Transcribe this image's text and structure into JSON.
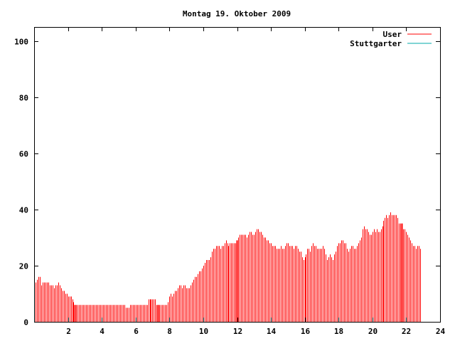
{
  "chart_data": {
    "type": "bar",
    "title": "Montag 19. Oktober 2009",
    "xlabel": "",
    "ylabel": "",
    "xlim": [
      0,
      24
    ],
    "ylim": [
      0,
      105
    ],
    "xticks": [
      2,
      4,
      6,
      8,
      10,
      12,
      14,
      16,
      18,
      20,
      22,
      24
    ],
    "yticks": [
      0,
      20,
      40,
      60,
      80,
      100
    ],
    "grid": false,
    "legend_position": "top-right",
    "bar_step_hours": 0.0833,
    "series": [
      {
        "name": "User",
        "color": "#ff0000",
        "values": [
          15,
          14,
          15,
          16,
          16,
          13,
          14,
          14,
          14,
          14,
          14,
          13,
          13,
          13,
          12,
          13,
          13,
          14,
          13,
          12,
          11,
          11,
          10,
          10,
          9,
          9,
          9,
          8,
          7,
          6,
          6,
          6,
          6,
          6,
          6,
          6,
          6,
          6,
          6,
          6,
          6,
          6,
          6,
          6,
          6,
          6,
          6,
          6,
          6,
          6,
          6,
          6,
          6,
          6,
          6,
          6,
          6,
          6,
          6,
          6,
          6,
          6,
          6,
          6,
          6,
          5,
          5,
          5,
          6,
          6,
          6,
          6,
          6,
          6,
          6,
          6,
          6,
          6,
          6,
          6,
          6,
          8,
          8,
          8,
          8,
          8,
          8,
          6,
          6,
          6,
          6,
          6,
          6,
          6,
          6,
          7,
          9,
          10,
          9,
          10,
          11,
          11,
          12,
          13,
          13,
          12,
          13,
          13,
          12,
          12,
          12,
          13,
          14,
          15,
          16,
          16,
          17,
          18,
          18,
          19,
          20,
          21,
          22,
          22,
          22,
          23,
          25,
          26,
          26,
          27,
          27,
          27,
          26,
          27,
          27,
          28,
          29,
          28,
          27,
          28,
          28,
          28,
          28,
          28,
          29,
          30,
          31,
          31,
          31,
          31,
          31,
          30,
          31,
          32,
          32,
          31,
          31,
          32,
          33,
          33,
          32,
          32,
          31,
          30,
          30,
          29,
          29,
          28,
          28,
          27,
          27,
          27,
          26,
          26,
          26,
          27,
          26,
          26,
          27,
          28,
          28,
          27,
          27,
          27,
          26,
          27,
          27,
          26,
          25,
          25,
          23,
          22,
          23,
          24,
          26,
          26,
          25,
          27,
          28,
          27,
          27,
          26,
          26,
          26,
          26,
          27,
          26,
          24,
          22,
          23,
          24,
          23,
          22,
          24,
          25,
          27,
          28,
          28,
          29,
          29,
          28,
          28,
          26,
          25,
          26,
          27,
          27,
          26,
          26,
          27,
          28,
          29,
          30,
          33,
          34,
          33,
          33,
          32,
          31,
          31,
          32,
          33,
          32,
          33,
          32,
          32,
          33,
          34,
          36,
          37,
          38,
          37,
          38,
          39,
          38,
          38,
          38,
          38,
          37,
          35,
          35,
          35,
          33,
          33,
          32,
          31,
          30,
          29,
          28,
          27,
          27,
          26,
          27,
          27,
          26
        ]
      },
      {
        "name": "Stuttgarter",
        "color": "#00aaaa",
        "values": []
      }
    ],
    "highlight_x_hours": [
      2.417,
      7.333,
      12.0,
      21.75
    ]
  }
}
